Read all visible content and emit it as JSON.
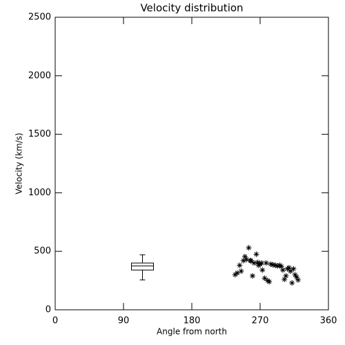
{
  "chart_data": {
    "type": "scatter",
    "title": "Velocity distribution",
    "x_label": "Angle from north",
    "y_label": "Velocity (km/s)",
    "xlim": [
      0,
      360
    ],
    "xticks": [
      0,
      90,
      180,
      270,
      360
    ],
    "ylim": [
      0,
      2500
    ],
    "yticks": [
      0,
      500,
      1000,
      1500,
      2000,
      2500
    ],
    "color": "#000000",
    "marker": "asterisk",
    "x": [
      237,
      240,
      243,
      245,
      248,
      250,
      252,
      255,
      257,
      258,
      260,
      262,
      265,
      267,
      268,
      270,
      272,
      273,
      276,
      278,
      280,
      282,
      284,
      287,
      290,
      293,
      296,
      298,
      300,
      302,
      304,
      306,
      308,
      310,
      312,
      314,
      316,
      318,
      320
    ],
    "values": [
      300,
      315,
      380,
      330,
      420,
      455,
      430,
      530,
      420,
      420,
      290,
      400,
      475,
      405,
      380,
      390,
      400,
      340,
      270,
      400,
      250,
      240,
      390,
      385,
      380,
      375,
      380,
      370,
      340,
      260,
      290,
      350,
      360,
      330,
      230,
      350,
      300,
      280,
      255
    ],
    "box": {
      "x": 115,
      "whislo": 255,
      "q1": 340,
      "median": 375,
      "q3": 400,
      "whishi": 470
    }
  }
}
